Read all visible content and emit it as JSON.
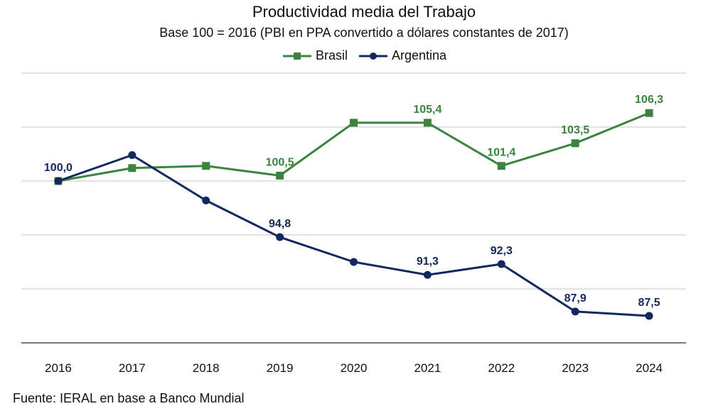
{
  "chart_data": {
    "type": "line",
    "title": "Productividad media del Trabajo",
    "subtitle": "Base 100 = 2016 (PBI en PPA convertido  a dólares constantes de 2017)",
    "xlabel": "",
    "ylabel": "",
    "categories": [
      "2016",
      "2017",
      "2018",
      "2019",
      "2020",
      "2021",
      "2022",
      "2023",
      "2024"
    ],
    "ylim": [
      85,
      110
    ],
    "gridlines": [
      85,
      90,
      95,
      100,
      105,
      110
    ],
    "grid": true,
    "y_tick_labels_shown": false,
    "legend_position": "top-center",
    "series": [
      {
        "name": "Brasil",
        "color": "#3a8440",
        "marker": "square",
        "values": [
          100.0,
          101.2,
          101.4,
          100.5,
          105.4,
          105.4,
          101.4,
          103.5,
          106.3
        ],
        "labels": [
          null,
          null,
          null,
          "100,5",
          null,
          "105,4",
          "101,4",
          "103,5",
          "106,3"
        ]
      },
      {
        "name": "Argentina",
        "color": "#13285f",
        "marker": "circle",
        "values": [
          100.0,
          102.4,
          98.2,
          94.8,
          92.5,
          91.3,
          92.3,
          87.9,
          87.5
        ],
        "labels": [
          "100,0",
          null,
          null,
          "94,8",
          null,
          "91,3",
          "92,3",
          "87,9",
          "87,5"
        ]
      }
    ],
    "source": "Fuente: IERAL en base a Banco Mundial"
  }
}
